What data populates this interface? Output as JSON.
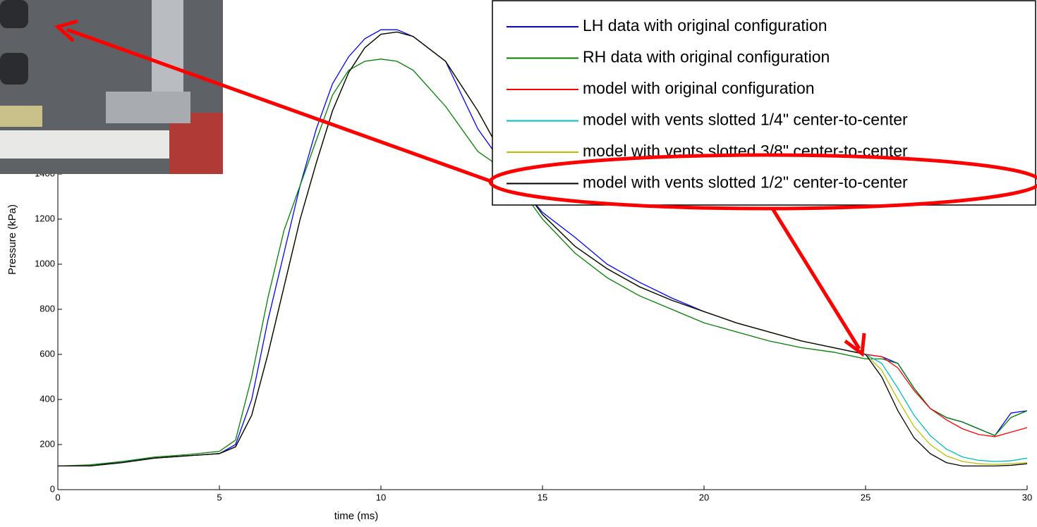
{
  "chart_data": {
    "type": "line",
    "x_label": "time (ms)",
    "y_label": "Pressure (kPa)",
    "x": [
      0,
      1,
      2,
      3,
      4,
      5,
      5.5,
      6,
      6.5,
      7,
      7.5,
      8,
      8.5,
      9,
      9.5,
      10,
      10.5,
      11,
      12,
      13,
      14,
      15,
      16,
      17,
      18,
      19,
      20,
      21,
      22,
      23,
      24,
      25,
      25.5,
      26,
      26.5,
      27,
      27.5,
      28,
      28.5,
      29,
      29.5,
      30
    ],
    "series": [
      {
        "name": "LH data with original configuration",
        "color": "#0000ff",
        "values": [
          105,
          105,
          125,
          140,
          150,
          160,
          200,
          400,
          750,
          1050,
          1350,
          1600,
          1800,
          1920,
          2000,
          2040,
          2040,
          2010,
          1900,
          1600,
          1400,
          1230,
          1120,
          1000,
          920,
          850,
          790,
          740,
          700,
          660,
          630,
          600,
          590,
          560,
          450,
          360,
          320,
          300,
          270,
          240,
          340,
          350
        ]
      },
      {
        "name": "RH data with original configuration",
        "color": "#008000",
        "values": [
          105,
          110,
          125,
          145,
          155,
          170,
          220,
          500,
          850,
          1150,
          1350,
          1550,
          1750,
          1860,
          1900,
          1910,
          1900,
          1860,
          1700,
          1500,
          1400,
          1200,
          1050,
          940,
          860,
          800,
          740,
          700,
          660,
          630,
          610,
          580,
          580,
          560,
          450,
          360,
          320,
          300,
          270,
          240,
          320,
          350
        ]
      },
      {
        "name": "model with original configuration",
        "color": "#ff0000",
        "values": [
          105,
          105,
          120,
          140,
          150,
          160,
          190,
          330,
          600,
          900,
          1200,
          1450,
          1680,
          1850,
          1960,
          2020,
          2030,
          2010,
          1900,
          1680,
          1420,
          1220,
          1080,
          980,
          900,
          840,
          790,
          740,
          700,
          660,
          630,
          600,
          590,
          540,
          440,
          360,
          310,
          270,
          245,
          235,
          255,
          275
        ]
      },
      {
        "name": "model with vents slotted 1/4\" center-to-center",
        "color": "#00bfbf",
        "values": [
          105,
          105,
          120,
          140,
          150,
          160,
          190,
          330,
          600,
          900,
          1200,
          1450,
          1680,
          1850,
          1960,
          2020,
          2030,
          2010,
          1900,
          1680,
          1420,
          1220,
          1080,
          980,
          900,
          840,
          790,
          740,
          700,
          660,
          630,
          600,
          560,
          450,
          330,
          240,
          180,
          145,
          130,
          125,
          128,
          140
        ]
      },
      {
        "name": "model with vents slotted 3/8\" center-to-center",
        "color": "#bfbf00",
        "values": [
          105,
          105,
          120,
          140,
          150,
          160,
          190,
          330,
          600,
          900,
          1200,
          1450,
          1680,
          1850,
          1960,
          2020,
          2030,
          2010,
          1900,
          1680,
          1420,
          1220,
          1080,
          980,
          900,
          840,
          790,
          740,
          700,
          660,
          630,
          600,
          530,
          400,
          280,
          200,
          150,
          125,
          115,
          112,
          115,
          120
        ]
      },
      {
        "name": "model with vents slotted 1/2\" center-to-center",
        "color": "#000000",
        "values": [
          105,
          105,
          120,
          140,
          150,
          160,
          190,
          330,
          600,
          900,
          1200,
          1450,
          1680,
          1850,
          1960,
          2020,
          2030,
          2010,
          1900,
          1680,
          1420,
          1220,
          1080,
          980,
          900,
          840,
          790,
          740,
          700,
          660,
          630,
          600,
          500,
          350,
          230,
          160,
          120,
          105,
          105,
          105,
          108,
          115
        ]
      }
    ],
    "xlim": [
      0,
      30
    ],
    "xticks": [
      0,
      5,
      10,
      15,
      20,
      25,
      30
    ],
    "ylim": [
      0,
      2200
    ],
    "yticks": [
      0,
      200,
      400,
      600,
      800,
      1000,
      1200,
      1400
    ],
    "legend": "upper-right"
  }
}
